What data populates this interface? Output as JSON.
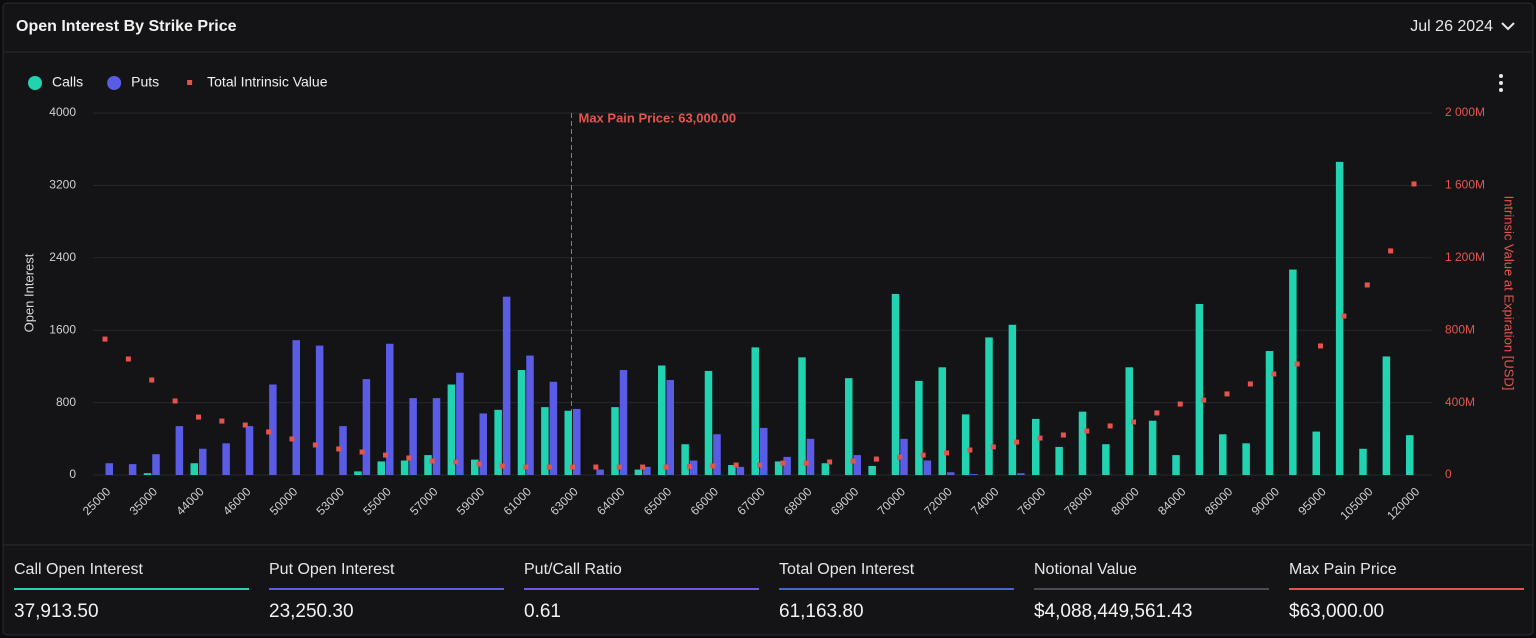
{
  "header": {
    "title": "Open Interest By Strike Price",
    "date": "Jul 26 2024"
  },
  "chart_data": {
    "type": "bar",
    "ylabel": "Open Interest",
    "y2label": "Intrinsic Value at Expiration [USD]",
    "categories": [
      "25000",
      null,
      "35000",
      null,
      "44000",
      null,
      "46000",
      null,
      "50000",
      null,
      "53000",
      null,
      "55000",
      null,
      "57000",
      null,
      "59000",
      null,
      "61000",
      null,
      "63000",
      null,
      "64000",
      null,
      "65000",
      null,
      "66000",
      null,
      "67000",
      null,
      "68000",
      null,
      "69000",
      null,
      "70000",
      null,
      "72000",
      null,
      "74000",
      null,
      "76000",
      null,
      "78000",
      null,
      "80000",
      null,
      "84000",
      null,
      "86000",
      null,
      "90000",
      null,
      "95000",
      null,
      "105000",
      null,
      "120000"
    ],
    "series": [
      {
        "name": "Calls",
        "color": "#22d3b2",
        "values": [
          0,
          0,
          20,
          0,
          130,
          0,
          0,
          0,
          0,
          0,
          0,
          40,
          150,
          160,
          220,
          1000,
          170,
          720,
          1160,
          750,
          710,
          0,
          750,
          60,
          1210,
          340,
          1150,
          110,
          1410,
          150,
          1300,
          130,
          1070,
          100,
          2000,
          1040,
          1190,
          670,
          1520,
          1660,
          620,
          310,
          700,
          340,
          1190,
          600,
          220,
          1890,
          450,
          350,
          1370,
          2270,
          480,
          3460,
          290,
          1310,
          440
        ]
      },
      {
        "name": "Puts",
        "color": "#5b5ce6",
        "values": [
          130,
          120,
          230,
          540,
          290,
          350,
          540,
          1000,
          1490,
          1430,
          540,
          1060,
          1450,
          850,
          850,
          1130,
          680,
          1970,
          1320,
          1030,
          730,
          60,
          1160,
          90,
          1050,
          160,
          450,
          90,
          520,
          200,
          400,
          0,
          220,
          0,
          400,
          160,
          30,
          10,
          0,
          20,
          0,
          0,
          0,
          0,
          0,
          0,
          0,
          0,
          0,
          0,
          0,
          0,
          0,
          0,
          0,
          0,
          0
        ]
      },
      {
        "name": "Total Intrinsic Value",
        "color": "#e5544c",
        "axis": "y2",
        "values": [
          751,
          641,
          525,
          409,
          320,
          298,
          276,
          238,
          199,
          166,
          144,
          127,
          110,
          94,
          77,
          72,
          61,
          50,
          44,
          44,
          44,
          44,
          44,
          44,
          44,
          47,
          50,
          55,
          55,
          66,
          66,
          72,
          77,
          88,
          99,
          110,
          122,
          138,
          155,
          182,
          204,
          221,
          243,
          271,
          293,
          343,
          392,
          414,
          448,
          503,
          558,
          613,
          713,
          878,
          1050,
          1238,
          1608
        ]
      }
    ],
    "ylim": [
      0,
      4000
    ],
    "yticks": [
      0,
      800,
      1600,
      2400,
      3200,
      4000
    ],
    "y2lim": [
      0,
      2000
    ],
    "y2ticks": [
      {
        "value": 0,
        "label": "0"
      },
      {
        "value": 400,
        "label": "400M"
      },
      {
        "value": 800,
        "label": "800M"
      },
      {
        "value": 1200,
        "label": "1 200M"
      },
      {
        "value": 1600,
        "label": "1 600M"
      },
      {
        "value": 2000,
        "label": "2 000M"
      }
    ],
    "grid": true,
    "legend": "top-left",
    "annotation": {
      "text": "Max Pain Price: 63,000.00",
      "x": "63000",
      "color": "#e5544c"
    }
  },
  "summary": [
    {
      "label": "Call Open Interest",
      "value": "37,913.50",
      "color": "#22d3b2"
    },
    {
      "label": "Put Open Interest",
      "value": "23,250.30",
      "color": "#5b5ce6"
    },
    {
      "label": "Put/Call Ratio",
      "value": "0.61",
      "color": "#7356e8"
    },
    {
      "label": "Total Open Interest",
      "value": "61,163.80",
      "color": "#4466d4"
    },
    {
      "label": "Notional Value",
      "value": "$4,088,449,561.43",
      "color": "#4a4a52"
    },
    {
      "label": "Max Pain Price",
      "value": "$63,000.00",
      "color": "#e5544c"
    }
  ]
}
